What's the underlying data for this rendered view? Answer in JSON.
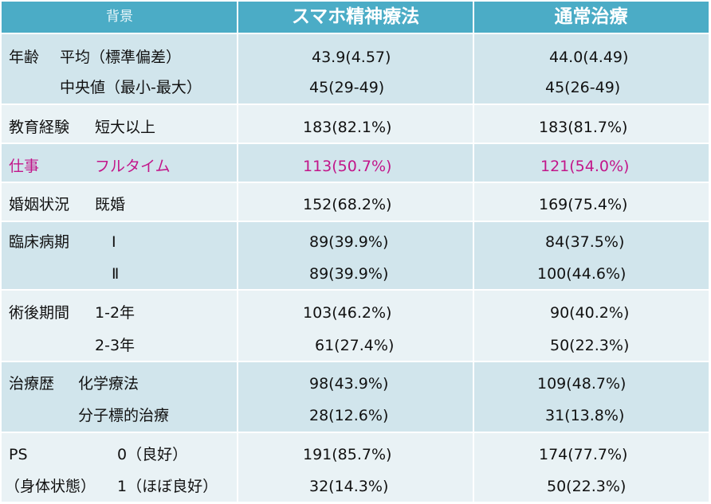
{
  "header": {
    "col1": "背景",
    "col2": "スマホ精神療法",
    "col3": "通常治療"
  },
  "rows": [
    {
      "category": "年齢",
      "item": "平均（標準偏差）",
      "smartphone": "43.9(4.57)",
      "usual": "44.0(4.49)"
    },
    {
      "category": "",
      "item": "中央値（最小-最大）",
      "smartphone": "45(29-49)",
      "usual": "45(26-49)"
    },
    {
      "category": "教育経験",
      "item": "短大以上",
      "smartphone": "183(82.1%)",
      "usual": "183(81.7%)"
    },
    {
      "category": "仕事",
      "item": "フルタイム",
      "smartphone": "113(50.7%)",
      "usual": "121(54.0%)"
    },
    {
      "category": "婚姻状況",
      "item": "既婚",
      "smartphone": "152(68.2%)",
      "usual": "169(75.4%)"
    },
    {
      "category": "臨床病期",
      "item": "Ⅰ",
      "smartphone": "89(39.9%)",
      "usual": "84(37.5%)"
    },
    {
      "category": "",
      "item": "Ⅱ",
      "smartphone": "89(39.9%)",
      "usual": "100(44.6%)"
    },
    {
      "category": "術後期間",
      "item": "1-2年",
      "smartphone": "103(46.2%)",
      "usual": "90(40.2%)"
    },
    {
      "category": "",
      "item": "2-3年",
      "smartphone": "61(27.4%)",
      "usual": "50(22.3%)"
    },
    {
      "category": "治療歴",
      "item": "化学療法",
      "smartphone": "98(43.9%)",
      "usual": "109(48.7%)"
    },
    {
      "category": "",
      "item": "分子標的治療",
      "smartphone": "28(12.6%)",
      "usual": "31(13.8%)"
    },
    {
      "category": "PS",
      "item": "0（良好）",
      "smartphone": "191(85.7%)",
      "usual": "174(77.7%)"
    },
    {
      "category": "（身体状態）",
      "item": "1（ほぼ良好）",
      "smartphone": "32(14.3%)",
      "usual": "50(22.3%)"
    }
  ],
  "colors": {
    "header": "#4bacc6",
    "band_dark": "#d1e5ec",
    "band_light": "#e9f2f5",
    "highlight_text": "#c2168a"
  }
}
